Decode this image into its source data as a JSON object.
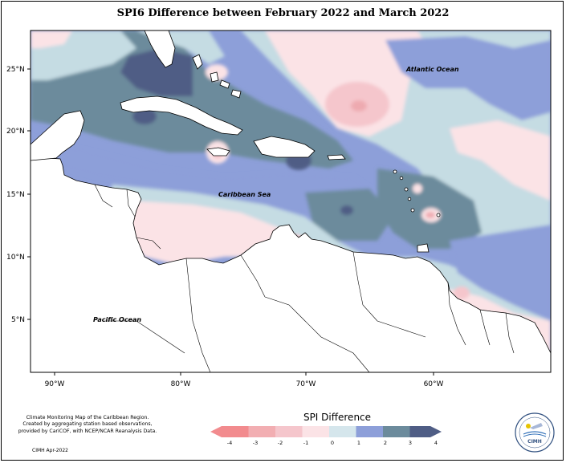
{
  "title": "SPI6 Difference between February 2022 and March 2022",
  "map": {
    "labels": {
      "atlantic": "Atlantic Ocean",
      "caribbean": "Caribbean Sea",
      "pacific": "Pacific Ocean"
    },
    "lat_ticks": [
      "25°N",
      "20°N",
      "15°N",
      "10°N",
      "5°N"
    ],
    "lon_ticks": [
      "90°W",
      "80°W",
      "70°W",
      "60°W"
    ]
  },
  "colors": {
    "ocean_base": "#c5dce3",
    "bg_sea": "#8d9fd9",
    "land": "#ffffff",
    "dark_blue": "#4f5d85",
    "teal_gray": "#6c8b9c",
    "med_blue": "#8d9fd9",
    "light_blue": "#c5dce3",
    "pale_pink": "#fbe3e6",
    "light_pink": "#f5c6cc",
    "pink": "#eeaab0"
  },
  "legend": {
    "title": "SPI Difference",
    "ticks": [
      "-4",
      "-3",
      "-2",
      "-1",
      "0",
      "1",
      "2",
      "3",
      "4"
    ],
    "colors": [
      "#f28b8e",
      "#f2aeb2",
      "#f5c6cc",
      "#fbe3e6",
      "#d5e6ec",
      "#8d9fd9",
      "#6c8b9c",
      "#4f5d85"
    ]
  },
  "credit": {
    "line1": "Climate Monitoring Map of the Caribbean Region.",
    "line2": "Created by aggregating station based observations,",
    "line3": "provided by CariCOF, with NCEP/NCAR Reanalysis Data.",
    "date": "CIMH Apr-2022"
  },
  "logo": {
    "text": "CIMH"
  }
}
